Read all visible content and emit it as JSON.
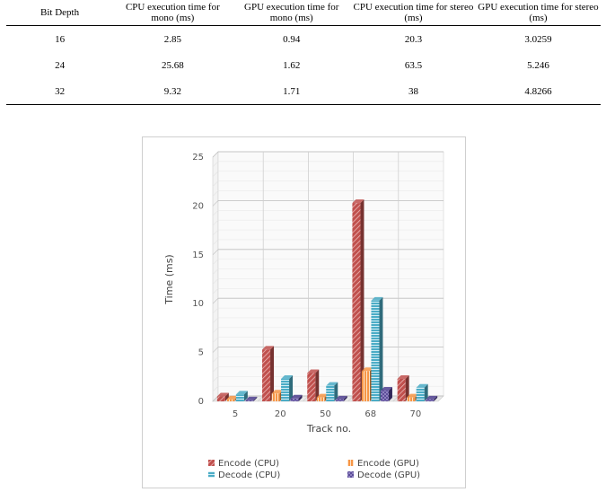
{
  "table": {
    "headers": [
      "Bit Depth",
      "CPU execution time for mono (ms)",
      "GPU execution time for mono (ms)",
      "CPU execution time for stereo (ms)",
      "GPU execution time for stereo (ms)"
    ],
    "rows": [
      [
        "16",
        "2.85",
        "0.94",
        "20.3",
        "3.0259"
      ],
      [
        "24",
        "25.68",
        "1.62",
        "63.5",
        "5.246"
      ],
      [
        "32",
        "9.32",
        "1.71",
        "38",
        "4.8266"
      ]
    ]
  },
  "chart_data": {
    "type": "bar",
    "style": "3d-clustered",
    "title": "",
    "xlabel": "Track no.",
    "ylabel": "Time (ms)",
    "ylim": [
      0,
      25
    ],
    "yticks": [
      "0",
      "5",
      "10",
      "15",
      "20",
      "25"
    ],
    "grid": true,
    "legend_position": "bottom",
    "categories": [
      "5",
      "20",
      "50",
      "68",
      "70"
    ],
    "series": [
      {
        "name": "Encode (CPU)",
        "values": [
          0.5,
          5.3,
          2.9,
          20.3,
          2.3
        ],
        "color": "#c0504d",
        "pattern": "diagonal"
      },
      {
        "name": "Encode (GPU)",
        "values": [
          0.2,
          0.8,
          0.4,
          3.1,
          0.4
        ],
        "color": "#f79646",
        "pattern": "vertical"
      },
      {
        "name": "Decode (CPU)",
        "values": [
          0.7,
          2.3,
          1.6,
          10.3,
          1.4
        ],
        "color": "#4bacc6",
        "pattern": "horizontal"
      },
      {
        "name": "Decode (GPU)",
        "values": [
          0.1,
          0.3,
          0.2,
          1.1,
          0.2
        ],
        "color": "#4f3f8f",
        "pattern": "cross"
      }
    ]
  }
}
